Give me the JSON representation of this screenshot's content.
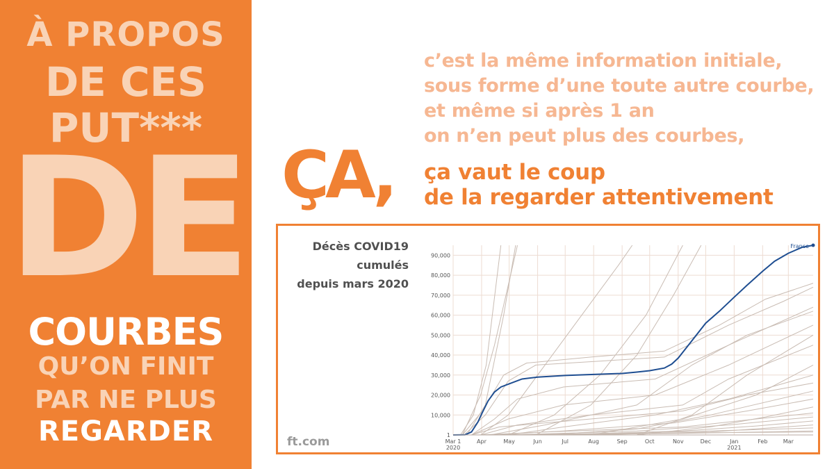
{
  "left_panel": {
    "line1": "À PROPOS",
    "line2": "DE CES",
    "line3": "PUT***",
    "line4": "DE",
    "line5": "COURBES",
    "line6": "QU’ON FINIT",
    "line7": "PAR NE PLUS",
    "line8": "REGARDER"
  },
  "intro": [
    "c’est la même information initiale,",
    "sous forme d’une toute autre courbe,",
    "et même si après 1 an",
    "on n’en peut plus des courbes,"
  ],
  "ca_big": "ÇA,",
  "punchline": [
    "ça vaut le coup",
    "de la regarder attentivement"
  ],
  "chart_caption": [
    "Décès COVID19",
    "cumulés",
    "depuis mars 2020"
  ],
  "source": "ft.com",
  "colors": {
    "accent": "#f08133",
    "pale": "#f9d3b6",
    "soft_text": "#f6b792",
    "france": "#1f4e91",
    "others": "#c9bcb3"
  },
  "chart_data": {
    "type": "line",
    "title": "Décès COVID19 cumulés depuis mars 2020",
    "ylim": [
      0,
      95000
    ],
    "yticks": [
      1,
      10000,
      20000,
      30000,
      40000,
      50000,
      60000,
      70000,
      80000,
      90000
    ],
    "ytick_labels": [
      "1",
      "10,000",
      "20,000",
      "30,000",
      "40,000",
      "50,000",
      "60,000",
      "70,000",
      "80,000",
      "90,000"
    ],
    "xticks": [
      {
        "label": "Mar 1",
        "sub": "2020",
        "day": 0
      },
      {
        "label": "Apr",
        "day": 31
      },
      {
        "label": "May",
        "day": 61
      },
      {
        "label": "Jun",
        "day": 92
      },
      {
        "label": "Jul",
        "day": 122
      },
      {
        "label": "Aug",
        "day": 153
      },
      {
        "label": "Sep",
        "day": 184
      },
      {
        "label": "Oct",
        "day": 214
      },
      {
        "label": "Nov",
        "day": 245
      },
      {
        "label": "Dec",
        "day": 275
      },
      {
        "label": "Jan",
        "sub": "2021",
        "day": 306
      },
      {
        "label": "Feb",
        "day": 337
      },
      {
        "label": "Mar",
        "day": 365
      }
    ],
    "xlim": [
      0,
      392
    ],
    "highlight": {
      "name": "France",
      "points": [
        [
          0,
          1
        ],
        [
          13,
          100
        ],
        [
          20,
          1500
        ],
        [
          27,
          6500
        ],
        [
          31,
          10500
        ],
        [
          38,
          17000
        ],
        [
          45,
          21500
        ],
        [
          52,
          24000
        ],
        [
          61,
          25600
        ],
        [
          75,
          28000
        ],
        [
          92,
          29000
        ],
        [
          122,
          29800
        ],
        [
          153,
          30300
        ],
        [
          184,
          30800
        ],
        [
          200,
          31500
        ],
        [
          214,
          32200
        ],
        [
          230,
          33500
        ],
        [
          238,
          35500
        ],
        [
          245,
          38500
        ],
        [
          258,
          46000
        ],
        [
          275,
          56000
        ],
        [
          290,
          62000
        ],
        [
          306,
          69000
        ],
        [
          320,
          75000
        ],
        [
          337,
          82000
        ],
        [
          350,
          87000
        ],
        [
          365,
          91000
        ],
        [
          380,
          94000
        ],
        [
          392,
          95000
        ]
      ]
    },
    "others": [
      [
        [
          8,
          1
        ],
        [
          22,
          10000
        ],
        [
          36,
          35000
        ],
        [
          52,
          95000
        ]
      ],
      [
        [
          15,
          1
        ],
        [
          35,
          15000
        ],
        [
          55,
          60000
        ],
        [
          68,
          95000
        ]
      ],
      [
        [
          10,
          1
        ],
        [
          30,
          20000
        ],
        [
          45,
          45000
        ],
        [
          60,
          75000
        ],
        [
          70,
          95000
        ]
      ],
      [
        [
          30,
          1
        ],
        [
          60,
          10000
        ],
        [
          100,
          35000
        ],
        [
          140,
          60000
        ],
        [
          180,
          85000
        ],
        [
          195,
          95000
        ]
      ],
      [
        [
          60,
          1
        ],
        [
          110,
          10000
        ],
        [
          160,
          30000
        ],
        [
          210,
          60000
        ],
        [
          250,
          95000
        ]
      ],
      [
        [
          90,
          1
        ],
        [
          150,
          15000
        ],
        [
          200,
          40000
        ],
        [
          240,
          70000
        ],
        [
          270,
          95000
        ]
      ],
      [
        [
          10,
          1
        ],
        [
          32,
          12000
        ],
        [
          55,
          30000
        ],
        [
          80,
          36000
        ],
        [
          150,
          39000
        ],
        [
          230,
          42000
        ],
        [
          290,
          55000
        ],
        [
          340,
          68000
        ],
        [
          392,
          76000
        ]
      ],
      [
        [
          12,
          1
        ],
        [
          35,
          10000
        ],
        [
          60,
          27000
        ],
        [
          90,
          35000
        ],
        [
          160,
          37000
        ],
        [
          230,
          39000
        ],
        [
          300,
          55000
        ],
        [
          360,
          67000
        ],
        [
          392,
          74000
        ]
      ],
      [
        [
          20,
          1
        ],
        [
          45,
          8000
        ],
        [
          70,
          18000
        ],
        [
          120,
          24000
        ],
        [
          220,
          28000
        ],
        [
          300,
          45000
        ],
        [
          392,
          64000
        ]
      ],
      [
        [
          40,
          1
        ],
        [
          100,
          5000
        ],
        [
          200,
          15000
        ],
        [
          260,
          35000
        ],
        [
          320,
          50000
        ],
        [
          392,
          62000
        ]
      ],
      [
        [
          20,
          1
        ],
        [
          60,
          8000
        ],
        [
          120,
          15000
        ],
        [
          220,
          20000
        ],
        [
          300,
          35000
        ],
        [
          392,
          55000
        ]
      ],
      [
        [
          200,
          1
        ],
        [
          260,
          10000
        ],
        [
          320,
          30000
        ],
        [
          392,
          50000
        ]
      ],
      [
        [
          30,
          1
        ],
        [
          70,
          5000
        ],
        [
          150,
          10000
        ],
        [
          250,
          15000
        ],
        [
          300,
          28000
        ],
        [
          392,
          45000
        ]
      ],
      [
        [
          150,
          1
        ],
        [
          250,
          8000
        ],
        [
          330,
          20000
        ],
        [
          392,
          35000
        ]
      ],
      [
        [
          60,
          1
        ],
        [
          120,
          4000
        ],
        [
          220,
          10000
        ],
        [
          300,
          18000
        ],
        [
          392,
          30000
        ]
      ],
      [
        [
          20,
          1
        ],
        [
          50,
          4000
        ],
        [
          150,
          8000
        ],
        [
          250,
          12000
        ],
        [
          320,
          20000
        ],
        [
          392,
          26000
        ]
      ],
      [
        [
          100,
          1
        ],
        [
          200,
          3000
        ],
        [
          280,
          10000
        ],
        [
          392,
          22000
        ]
      ],
      [
        [
          40,
          1
        ],
        [
          120,
          2000
        ],
        [
          240,
          6000
        ],
        [
          320,
          12000
        ],
        [
          392,
          18000
        ]
      ],
      [
        [
          200,
          1
        ],
        [
          280,
          4000
        ],
        [
          340,
          9000
        ],
        [
          392,
          14000
        ]
      ],
      [
        [
          30,
          1
        ],
        [
          100,
          1500
        ],
        [
          250,
          4000
        ],
        [
          330,
          8000
        ],
        [
          392,
          11000
        ]
      ],
      [
        [
          60,
          1
        ],
        [
          200,
          2000
        ],
        [
          300,
          5000
        ],
        [
          392,
          9000
        ]
      ],
      [
        [
          100,
          1
        ],
        [
          250,
          2000
        ],
        [
          330,
          4500
        ],
        [
          392,
          7000
        ]
      ],
      [
        [
          150,
          1
        ],
        [
          280,
          1500
        ],
        [
          392,
          5000
        ]
      ],
      [
        [
          40,
          1
        ],
        [
          200,
          1000
        ],
        [
          320,
          2500
        ],
        [
          392,
          3500
        ]
      ],
      [
        [
          80,
          1
        ],
        [
          250,
          800
        ],
        [
          392,
          2000
        ]
      ],
      [
        [
          20,
          1
        ],
        [
          150,
          500
        ],
        [
          300,
          1200
        ],
        [
          392,
          1500
        ]
      ]
    ]
  }
}
